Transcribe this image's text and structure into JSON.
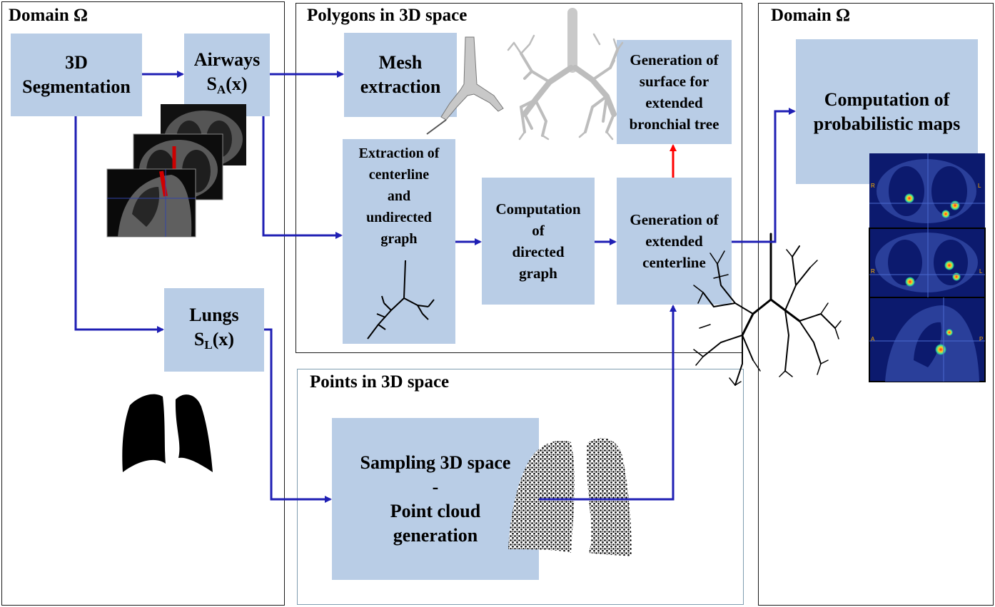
{
  "panels": {
    "left_title": "Domain Ω",
    "poly_title": "Polygons in 3D space",
    "points_title": "Points in 3D space",
    "right_title": "Domain Ω"
  },
  "boxes": {
    "segmentation": [
      "3D",
      "Segmentation"
    ],
    "airways": {
      "line1": "Airways",
      "sym": "S",
      "sub": "A",
      "rest": "(x)"
    },
    "lungs": {
      "line1": "Lungs",
      "sym": "S",
      "sub": "L",
      "rest": "(x)"
    },
    "mesh": [
      "Mesh",
      "extraction"
    ],
    "centerline": [
      "Extraction of",
      "centerline",
      "and",
      "undirected",
      "graph"
    ],
    "directed": [
      "Computation",
      "of",
      "directed",
      "graph"
    ],
    "extended_centerline": [
      "Generation of",
      "extended",
      "centerline"
    ],
    "surface": [
      "Generation of",
      "surface for",
      "extended",
      "bronchial tree"
    ],
    "sampling": [
      "Sampling 3D space",
      "-",
      "Point cloud",
      "generation"
    ],
    "probabilistic": [
      "Computation of",
      "probabilistic maps"
    ]
  },
  "ct_labels": {
    "r1": "R",
    "l1": "L",
    "r2": "R",
    "l2": "L",
    "a3": "A",
    "p3": "P"
  },
  "colors": {
    "box": "#b9cde6",
    "arrow": "#1f1fb4",
    "red_arrow": "#ff0000"
  }
}
